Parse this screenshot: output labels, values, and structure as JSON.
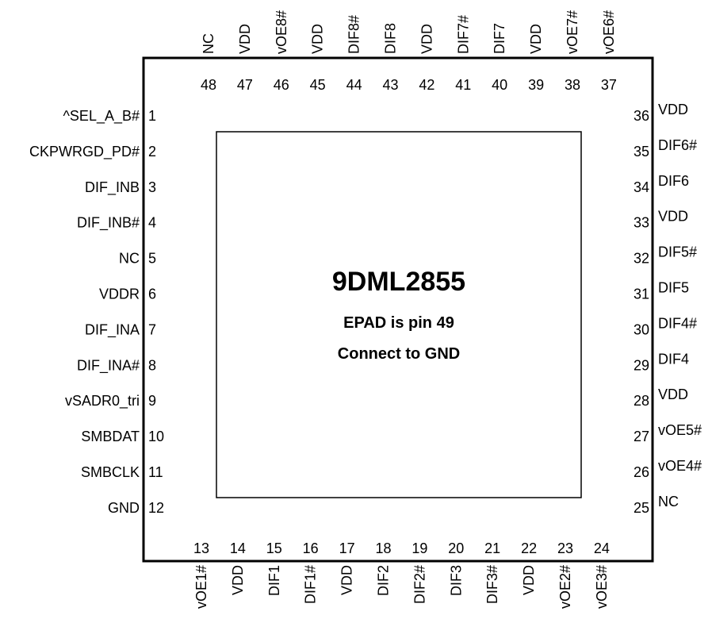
{
  "chip": {
    "name": "9DML2855",
    "epad_note": "EPAD is pin 49",
    "gnd_note": "Connect to GND"
  },
  "pins": {
    "left": [
      {
        "num": "1",
        "label": "^SEL_A_B#"
      },
      {
        "num": "2",
        "label": "CKPWRGD_PD#"
      },
      {
        "num": "3",
        "label": "DIF_INB"
      },
      {
        "num": "4",
        "label": "DIF_INB#"
      },
      {
        "num": "5",
        "label": "NC"
      },
      {
        "num": "6",
        "label": "VDDR"
      },
      {
        "num": "7",
        "label": "DIF_INA"
      },
      {
        "num": "8",
        "label": "DIF_INA#"
      },
      {
        "num": "9",
        "label": "vSADR0_tri"
      },
      {
        "num": "10",
        "label": "SMBDAT"
      },
      {
        "num": "11",
        "label": "SMBCLK"
      },
      {
        "num": "12",
        "label": "GND"
      }
    ],
    "bottom": [
      {
        "num": "13",
        "label": "vOE1#"
      },
      {
        "num": "14",
        "label": "VDD"
      },
      {
        "num": "15",
        "label": "DIF1"
      },
      {
        "num": "16",
        "label": "DIF1#"
      },
      {
        "num": "17",
        "label": "VDD"
      },
      {
        "num": "18",
        "label": "DIF2"
      },
      {
        "num": "19",
        "label": "DIF2#"
      },
      {
        "num": "20",
        "label": "DIF3"
      },
      {
        "num": "21",
        "label": "DIF3#"
      },
      {
        "num": "22",
        "label": "VDD"
      },
      {
        "num": "23",
        "label": "vOE2#"
      },
      {
        "num": "24",
        "label": "vOE3#"
      }
    ],
    "right": [
      {
        "num": "36",
        "label": "VDD"
      },
      {
        "num": "35",
        "label": "DIF6#"
      },
      {
        "num": "34",
        "label": "DIF6"
      },
      {
        "num": "33",
        "label": "VDD"
      },
      {
        "num": "32",
        "label": "DIF5#"
      },
      {
        "num": "31",
        "label": "DIF5"
      },
      {
        "num": "30",
        "label": "DIF4#"
      },
      {
        "num": "29",
        "label": "DIF4"
      },
      {
        "num": "28",
        "label": "VDD"
      },
      {
        "num": "27",
        "label": "vOE5#"
      },
      {
        "num": "26",
        "label": "vOE4#"
      },
      {
        "num": "25",
        "label": "NC"
      }
    ],
    "top": [
      {
        "num": "48",
        "label": "NC"
      },
      {
        "num": "47",
        "label": "VDD"
      },
      {
        "num": "46",
        "label": "vOE8#"
      },
      {
        "num": "45",
        "label": "VDD"
      },
      {
        "num": "44",
        "label": "DIF8#"
      },
      {
        "num": "43",
        "label": "DIF8"
      },
      {
        "num": "42",
        "label": "VDD"
      },
      {
        "num": "41",
        "label": "DIF7#"
      },
      {
        "num": "40",
        "label": "DIF7"
      },
      {
        "num": "39",
        "label": "VDD"
      },
      {
        "num": "38",
        "label": "vOE7#"
      },
      {
        "num": "37",
        "label": "vOE6#"
      }
    ]
  }
}
